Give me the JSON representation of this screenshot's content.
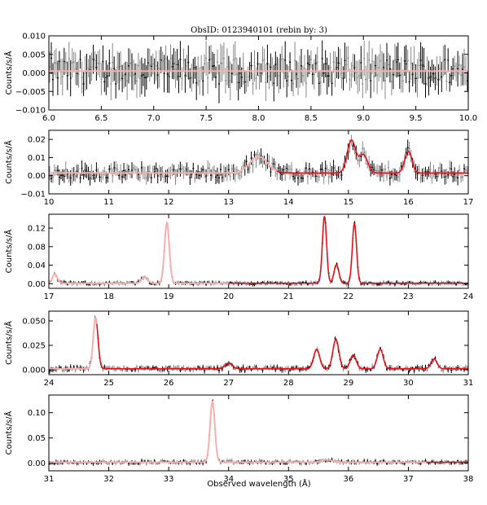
{
  "figure": {
    "title": "ObsID: 0123940101 (rebin by: 3)",
    "xlabel": "Observed wavelength (Å)",
    "colors": {
      "data_dark": "#000000",
      "data_light": "#888888",
      "model_dark": "#e8101a",
      "model_light": "#f7b0b0"
    }
  },
  "chart_data": [
    {
      "type": "line",
      "panel": 1,
      "ylabel": "Counts/s/Å",
      "xlim": [
        6.0,
        10.0
      ],
      "ylim": [
        -0.01,
        0.01
      ],
      "xticks": [
        6.0,
        6.5,
        7.0,
        7.5,
        8.0,
        8.5,
        9.0,
        9.5,
        10.0
      ],
      "xtick_labels": [
        "6.0",
        "6.5",
        "7.0",
        "7.5",
        "8.0",
        "8.5",
        "9.0",
        "9.5",
        "10.0"
      ],
      "yticks": [
        -0.01,
        -0.005,
        0.0,
        0.005,
        0.01
      ],
      "ytick_labels": [
        "−0.010",
        "−0.005",
        "0.000",
        "0.005",
        "0.010"
      ],
      "features": [],
      "continuum": 0.0005,
      "noise": 0.0035,
      "model_split": null
    },
    {
      "type": "line",
      "panel": 2,
      "ylabel": "Counts/s/Å",
      "xlim": [
        10,
        17
      ],
      "ylim": [
        -0.01,
        0.025
      ],
      "xticks": [
        10,
        11,
        12,
        13,
        14,
        15,
        16,
        17
      ],
      "xtick_labels": [
        "10",
        "11",
        "12",
        "13",
        "14",
        "15",
        "16",
        "17"
      ],
      "yticks": [
        -0.01,
        0.0,
        0.01,
        0.02
      ],
      "ytick_labels": [
        "−0.01",
        "0.00",
        "0.01",
        "0.02"
      ],
      "features": [
        {
          "x": 13.5,
          "peak": 0.009,
          "width": 0.15
        },
        {
          "x": 15.05,
          "peak": 0.018,
          "width": 0.07
        },
        {
          "x": 15.25,
          "peak": 0.01,
          "width": 0.07
        },
        {
          "x": 16.0,
          "peak": 0.012,
          "width": 0.06
        }
      ],
      "continuum": 0.0015,
      "noise": 0.003,
      "model_split": 13.8
    },
    {
      "type": "line",
      "panel": 3,
      "ylabel": "Counts/s/Å",
      "xlim": [
        17,
        24
      ],
      "ylim": [
        -0.01,
        0.15
      ],
      "xticks": [
        17,
        18,
        19,
        20,
        21,
        22,
        23,
        24
      ],
      "xtick_labels": [
        "17",
        "18",
        "19",
        "20",
        "21",
        "22",
        "23",
        "24"
      ],
      "yticks": [
        0.0,
        0.04,
        0.08,
        0.12
      ],
      "ytick_labels": [
        "0.00",
        "0.04",
        "0.08",
        "0.12"
      ],
      "features": [
        {
          "x": 17.1,
          "peak": 0.02,
          "width": 0.04
        },
        {
          "x": 18.6,
          "peak": 0.014,
          "width": 0.05
        },
        {
          "x": 18.97,
          "peak": 0.13,
          "width": 0.04
        },
        {
          "x": 21.6,
          "peak": 0.145,
          "width": 0.035
        },
        {
          "x": 21.8,
          "peak": 0.04,
          "width": 0.04
        },
        {
          "x": 22.1,
          "peak": 0.13,
          "width": 0.035
        }
      ],
      "continuum": 0.001,
      "noise": 0.003,
      "model_split": 20.0
    },
    {
      "type": "line",
      "panel": 4,
      "ylabel": "Counts/s/Å",
      "xlim": [
        24,
        31
      ],
      "ylim": [
        -0.005,
        0.06
      ],
      "xticks": [
        24,
        25,
        26,
        27,
        28,
        29,
        30,
        31
      ],
      "xtick_labels": [
        "24",
        "25",
        "26",
        "27",
        "28",
        "29",
        "30",
        "31"
      ],
      "yticks": [
        0.0,
        0.025,
        0.05
      ],
      "ytick_labels": [
        "0.000",
        "0.025",
        "0.050"
      ],
      "features": [
        {
          "x": 24.78,
          "peak": 0.052,
          "width": 0.04
        },
        {
          "x": 27.0,
          "peak": 0.006,
          "width": 0.06
        },
        {
          "x": 28.47,
          "peak": 0.02,
          "width": 0.05
        },
        {
          "x": 28.79,
          "peak": 0.03,
          "width": 0.05
        },
        {
          "x": 29.08,
          "peak": 0.014,
          "width": 0.05
        },
        {
          "x": 29.53,
          "peak": 0.02,
          "width": 0.05
        },
        {
          "x": 30.43,
          "peak": 0.01,
          "width": 0.05
        }
      ],
      "continuum": 0.001,
      "noise": 0.002,
      "model_split": 24.8
    },
    {
      "type": "line",
      "panel": 5,
      "ylabel": "Counts/s/Å",
      "xlim": [
        31,
        38
      ],
      "ylim": [
        -0.015,
        0.135
      ],
      "xticks": [
        31,
        32,
        33,
        34,
        35,
        36,
        37,
        38
      ],
      "xtick_labels": [
        "31",
        "32",
        "33",
        "34",
        "35",
        "36",
        "37",
        "38"
      ],
      "yticks": [
        0.0,
        0.05,
        0.1
      ],
      "ytick_labels": [
        "0.00",
        "0.05",
        "0.10"
      ],
      "features": [
        {
          "x": 33.73,
          "peak": 0.12,
          "width": 0.04
        },
        {
          "x": 35.65,
          "peak": 0.005,
          "width": 0.08
        }
      ],
      "continuum": 0.002,
      "noise": 0.003,
      "model_split": 37.3
    }
  ]
}
